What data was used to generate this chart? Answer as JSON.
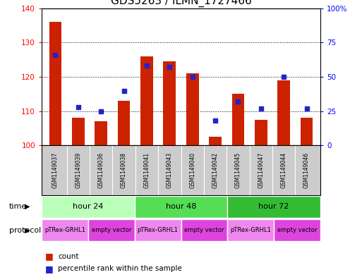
{
  "title": "GDS5263 / ILMN_1727466",
  "samples": [
    "GSM1149037",
    "GSM1149039",
    "GSM1149036",
    "GSM1149038",
    "GSM1149041",
    "GSM1149043",
    "GSM1149040",
    "GSM1149042",
    "GSM1149045",
    "GSM1149047",
    "GSM1149044",
    "GSM1149046"
  ],
  "counts": [
    136,
    108,
    107,
    113,
    126,
    124.5,
    121,
    102.5,
    115,
    107.5,
    119,
    108
  ],
  "percentiles": [
    66,
    28,
    25,
    40,
    58,
    57,
    50,
    18,
    32,
    27,
    50,
    27
  ],
  "ylim_left": [
    100,
    140
  ],
  "ylim_right": [
    0,
    100
  ],
  "yticks_left": [
    100,
    110,
    120,
    130,
    140
  ],
  "yticks_right": [
    0,
    25,
    50,
    75,
    100
  ],
  "bar_color": "#cc2200",
  "dot_color": "#2222cc",
  "time_groups": [
    {
      "label": "hour 24",
      "start": 0,
      "end": 3,
      "color": "#bbffbb"
    },
    {
      "label": "hour 48",
      "start": 4,
      "end": 7,
      "color": "#55dd55"
    },
    {
      "label": "hour 72",
      "start": 8,
      "end": 11,
      "color": "#33bb33"
    }
  ],
  "protocol_groups": [
    {
      "label": "pTRex-GRHL1",
      "start": 0,
      "end": 1,
      "color": "#ee88ee"
    },
    {
      "label": "empty vector",
      "start": 2,
      "end": 3,
      "color": "#dd44dd"
    },
    {
      "label": "pTRex-GRHL1",
      "start": 4,
      "end": 5,
      "color": "#ee88ee"
    },
    {
      "label": "empty vector",
      "start": 6,
      "end": 7,
      "color": "#dd44dd"
    },
    {
      "label": "pTRex-GRHL1",
      "start": 8,
      "end": 9,
      "color": "#ee88ee"
    },
    {
      "label": "empty vector",
      "start": 10,
      "end": 11,
      "color": "#dd44dd"
    }
  ],
  "time_label": "time",
  "protocol_label": "protocol",
  "legend_count": "count",
  "legend_percentile": "percentile rank within the sample",
  "background_color": "#ffffff",
  "title_fontsize": 11,
  "bar_width": 0.55
}
